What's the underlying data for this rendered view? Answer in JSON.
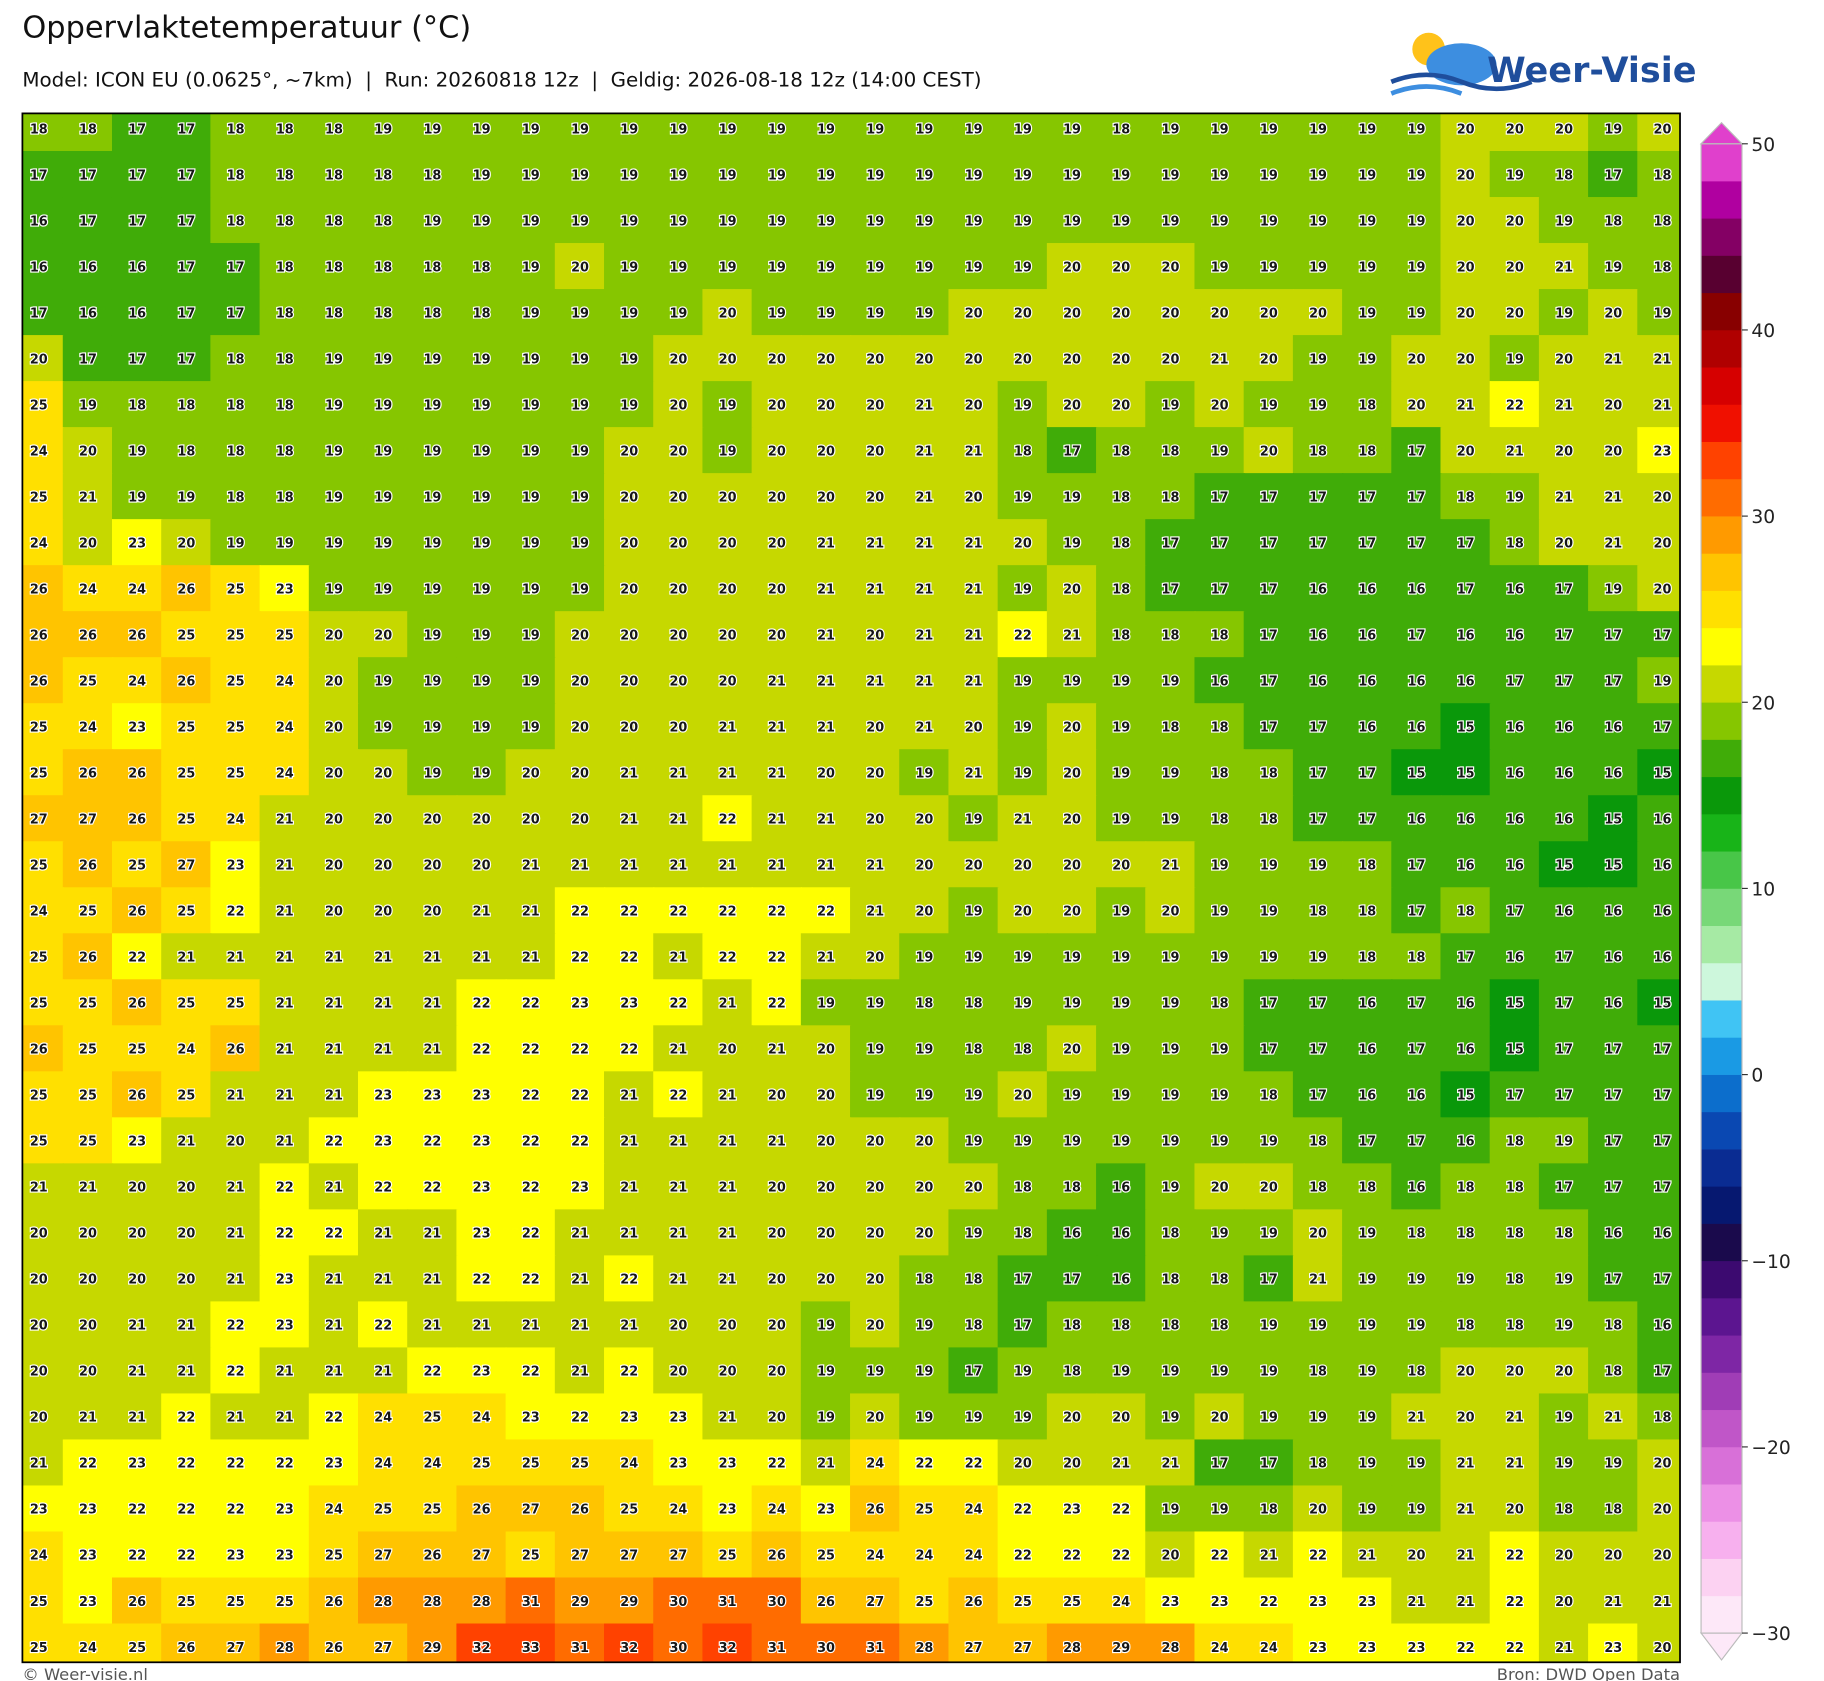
{
  "header": {
    "title": "Oppervlaktetemperatuur (°C)",
    "subtitle": "Model: ICON EU (0.0625°, ~7km)  |  Run: 20260818 12z  |  Geldig: 2026-08-18 12z (14:00 CEST)",
    "logo": "Weer-Visie"
  },
  "grid": {
    "rows": [
      [
        18,
        18,
        17,
        17,
        18,
        18,
        18,
        19,
        19,
        19,
        19,
        19,
        19,
        19,
        19,
        19,
        19,
        19,
        19,
        19,
        19,
        19,
        18,
        19,
        19,
        19,
        19,
        19,
        19,
        20,
        20,
        20,
        19,
        20
      ],
      [
        17,
        17,
        17,
        17,
        18,
        18,
        18,
        18,
        18,
        19,
        19,
        19,
        19,
        19,
        19,
        19,
        19,
        19,
        19,
        19,
        19,
        19,
        19,
        19,
        19,
        19,
        19,
        19,
        19,
        20,
        19,
        18,
        17,
        18
      ],
      [
        16,
        17,
        17,
        17,
        18,
        18,
        18,
        18,
        19,
        19,
        19,
        19,
        19,
        19,
        19,
        19,
        19,
        19,
        19,
        19,
        19,
        19,
        19,
        19,
        19,
        19,
        19,
        19,
        19,
        20,
        20,
        19,
        18,
        18
      ],
      [
        16,
        16,
        16,
        17,
        17,
        18,
        18,
        18,
        18,
        18,
        19,
        20,
        19,
        19,
        19,
        19,
        19,
        19,
        19,
        19,
        19,
        20,
        20,
        20,
        19,
        19,
        19,
        19,
        19,
        20,
        20,
        21,
        19,
        18
      ],
      [
        17,
        16,
        16,
        17,
        17,
        18,
        18,
        18,
        18,
        18,
        19,
        19,
        19,
        19,
        20,
        19,
        19,
        19,
        19,
        20,
        20,
        20,
        20,
        20,
        20,
        20,
        20,
        19,
        19,
        20,
        20,
        19,
        20,
        19
      ],
      [
        20,
        17,
        17,
        17,
        18,
        18,
        19,
        19,
        19,
        19,
        19,
        19,
        19,
        20,
        20,
        20,
        20,
        20,
        20,
        20,
        20,
        20,
        20,
        20,
        21,
        20,
        19,
        19,
        20,
        20,
        19,
        20,
        21,
        21
      ],
      [
        25,
        19,
        18,
        18,
        18,
        18,
        19,
        19,
        19,
        19,
        19,
        19,
        19,
        20,
        19,
        20,
        20,
        20,
        21,
        20,
        19,
        20,
        20,
        19,
        20,
        19,
        19,
        18,
        20,
        21,
        22,
        21,
        20,
        21
      ],
      [
        24,
        20,
        19,
        18,
        18,
        18,
        19,
        19,
        19,
        19,
        19,
        19,
        20,
        20,
        19,
        20,
        20,
        20,
        21,
        21,
        18,
        17,
        18,
        18,
        19,
        20,
        18,
        18,
        17,
        20,
        21,
        20,
        20,
        23
      ],
      [
        25,
        21,
        19,
        19,
        18,
        18,
        19,
        19,
        19,
        19,
        19,
        19,
        20,
        20,
        20,
        20,
        20,
        20,
        21,
        20,
        19,
        19,
        18,
        18,
        17,
        17,
        17,
        17,
        17,
        18,
        19,
        21,
        21,
        20
      ],
      [
        24,
        20,
        23,
        20,
        19,
        19,
        19,
        19,
        19,
        19,
        19,
        19,
        20,
        20,
        20,
        20,
        21,
        21,
        21,
        21,
        20,
        19,
        18,
        17,
        17,
        17,
        17,
        17,
        17,
        17,
        18,
        20,
        21,
        20
      ],
      [
        26,
        24,
        24,
        26,
        25,
        23,
        19,
        19,
        19,
        19,
        19,
        19,
        20,
        20,
        20,
        20,
        21,
        21,
        21,
        21,
        19,
        20,
        18,
        17,
        17,
        17,
        16,
        16,
        16,
        17,
        16,
        17,
        19,
        20
      ],
      [
        26,
        26,
        26,
        25,
        25,
        25,
        20,
        20,
        19,
        19,
        19,
        20,
        20,
        20,
        20,
        20,
        21,
        20,
        21,
        21,
        22,
        21,
        18,
        18,
        18,
        17,
        16,
        16,
        17,
        16,
        16,
        17,
        17,
        17
      ],
      [
        26,
        25,
        24,
        26,
        25,
        24,
        20,
        19,
        19,
        19,
        19,
        20,
        20,
        20,
        20,
        21,
        21,
        21,
        21,
        21,
        19,
        19,
        19,
        19,
        16,
        17,
        16,
        16,
        16,
        16,
        17,
        17,
        17,
        19
      ],
      [
        25,
        24,
        23,
        25,
        25,
        24,
        20,
        19,
        19,
        19,
        19,
        20,
        20,
        20,
        21,
        21,
        21,
        20,
        21,
        20,
        19,
        20,
        19,
        18,
        18,
        17,
        17,
        16,
        16,
        15,
        16,
        16,
        16,
        17
      ],
      [
        25,
        26,
        26,
        25,
        25,
        24,
        20,
        20,
        19,
        19,
        20,
        20,
        21,
        21,
        21,
        21,
        20,
        20,
        19,
        21,
        19,
        20,
        19,
        19,
        18,
        18,
        17,
        17,
        15,
        15,
        16,
        16,
        16,
        15
      ],
      [
        27,
        27,
        26,
        25,
        24,
        21,
        20,
        20,
        20,
        20,
        20,
        20,
        21,
        21,
        22,
        21,
        21,
        20,
        20,
        19,
        21,
        20,
        19,
        19,
        18,
        18,
        17,
        17,
        16,
        16,
        16,
        16,
        15,
        16
      ],
      [
        25,
        26,
        25,
        27,
        23,
        21,
        20,
        20,
        20,
        20,
        21,
        21,
        21,
        21,
        21,
        21,
        21,
        21,
        20,
        20,
        20,
        20,
        20,
        21,
        19,
        19,
        19,
        18,
        17,
        16,
        16,
        15,
        15,
        16
      ],
      [
        24,
        25,
        26,
        25,
        22,
        21,
        20,
        20,
        20,
        21,
        21,
        22,
        22,
        22,
        22,
        22,
        22,
        21,
        20,
        19,
        20,
        20,
        19,
        20,
        19,
        19,
        18,
        18,
        17,
        18,
        17,
        16,
        16,
        16
      ],
      [
        25,
        26,
        22,
        21,
        21,
        21,
        21,
        21,
        21,
        21,
        21,
        22,
        22,
        21,
        22,
        22,
        21,
        20,
        19,
        19,
        19,
        19,
        19,
        19,
        19,
        19,
        19,
        18,
        18,
        17,
        16,
        17,
        16,
        16
      ],
      [
        25,
        25,
        26,
        25,
        25,
        21,
        21,
        21,
        21,
        22,
        22,
        23,
        23,
        22,
        21,
        22,
        19,
        19,
        18,
        18,
        19,
        19,
        19,
        19,
        18,
        17,
        17,
        16,
        17,
        16,
        15,
        17,
        16,
        15
      ],
      [
        26,
        25,
        25,
        24,
        26,
        21,
        21,
        21,
        21,
        22,
        22,
        22,
        22,
        21,
        20,
        21,
        20,
        19,
        19,
        18,
        18,
        20,
        19,
        19,
        19,
        17,
        17,
        16,
        17,
        16,
        15,
        17,
        17,
        17
      ],
      [
        25,
        25,
        26,
        25,
        21,
        21,
        21,
        23,
        23,
        23,
        22,
        22,
        21,
        22,
        21,
        20,
        20,
        19,
        19,
        19,
        20,
        19,
        19,
        19,
        19,
        18,
        17,
        16,
        16,
        15,
        17,
        17,
        17,
        17
      ],
      [
        25,
        25,
        23,
        21,
        20,
        21,
        22,
        23,
        22,
        23,
        22,
        22,
        21,
        21,
        21,
        21,
        20,
        20,
        20,
        19,
        19,
        19,
        19,
        19,
        19,
        19,
        18,
        17,
        17,
        16,
        18,
        19,
        17,
        17
      ],
      [
        21,
        21,
        20,
        20,
        21,
        22,
        21,
        22,
        22,
        23,
        22,
        23,
        21,
        21,
        21,
        20,
        20,
        20,
        20,
        20,
        18,
        18,
        16,
        19,
        20,
        20,
        18,
        18,
        16,
        18,
        18,
        17,
        17,
        17
      ],
      [
        20,
        20,
        20,
        20,
        21,
        22,
        22,
        21,
        21,
        23,
        22,
        21,
        21,
        21,
        21,
        20,
        20,
        20,
        20,
        19,
        18,
        16,
        16,
        18,
        19,
        19,
        20,
        19,
        18,
        18,
        18,
        18,
        16,
        16
      ],
      [
        20,
        20,
        20,
        20,
        21,
        23,
        21,
        21,
        21,
        22,
        22,
        21,
        22,
        21,
        21,
        20,
        20,
        20,
        18,
        18,
        17,
        17,
        16,
        18,
        18,
        17,
        21,
        19,
        19,
        19,
        18,
        19,
        17,
        17
      ],
      [
        20,
        20,
        21,
        21,
        22,
        23,
        21,
        22,
        21,
        21,
        21,
        21,
        21,
        20,
        20,
        20,
        19,
        20,
        19,
        18,
        17,
        18,
        18,
        18,
        18,
        19,
        19,
        19,
        19,
        18,
        18,
        19,
        18,
        16
      ],
      [
        20,
        20,
        21,
        21,
        22,
        21,
        21,
        21,
        22,
        23,
        22,
        21,
        22,
        20,
        20,
        20,
        19,
        19,
        19,
        17,
        19,
        18,
        19,
        19,
        19,
        19,
        18,
        19,
        18,
        20,
        20,
        20,
        18,
        17
      ],
      [
        20,
        21,
        21,
        22,
        21,
        21,
        22,
        24,
        25,
        24,
        23,
        22,
        23,
        23,
        21,
        20,
        19,
        20,
        19,
        19,
        19,
        20,
        20,
        19,
        20,
        19,
        19,
        19,
        21,
        20,
        21,
        19,
        21,
        18
      ],
      [
        21,
        22,
        23,
        22,
        22,
        22,
        23,
        24,
        24,
        25,
        25,
        25,
        24,
        23,
        23,
        22,
        21,
        24,
        22,
        22,
        20,
        20,
        21,
        21,
        17,
        17,
        18,
        19,
        19,
        21,
        21,
        19,
        19,
        20
      ],
      [
        23,
        23,
        22,
        22,
        22,
        23,
        24,
        25,
        25,
        26,
        27,
        26,
        25,
        24,
        23,
        24,
        23,
        26,
        25,
        24,
        22,
        23,
        22,
        19,
        19,
        18,
        20,
        19,
        19,
        21,
        20,
        18,
        18,
        20
      ],
      [
        24,
        23,
        22,
        22,
        23,
        23,
        25,
        27,
        26,
        27,
        25,
        27,
        27,
        27,
        25,
        26,
        25,
        24,
        24,
        24,
        22,
        22,
        22,
        20,
        22,
        21,
        22,
        21,
        20,
        21,
        22,
        20,
        20,
        20
      ],
      [
        25,
        23,
        26,
        25,
        25,
        25,
        26,
        28,
        28,
        28,
        31,
        29,
        29,
        30,
        31,
        30,
        26,
        27,
        25,
        26,
        25,
        25,
        24,
        23,
        23,
        22,
        23,
        23,
        21,
        21,
        22,
        20,
        21,
        21
      ],
      [
        25,
        24,
        25,
        26,
        27,
        28,
        26,
        27,
        29,
        32,
        33,
        31,
        32,
        30,
        32,
        31,
        30,
        31,
        28,
        27,
        27,
        28,
        29,
        28,
        24,
        24,
        23,
        23,
        23,
        22,
        22,
        21,
        23,
        20
      ]
    ]
  },
  "colorbar": {
    "clim": [
      -30,
      50
    ],
    "ticks": [
      50,
      40,
      30,
      20,
      10,
      0,
      {
        "value": -10,
        "label": "−10"
      },
      {
        "value": -20,
        "label": "−20"
      },
      {
        "value": -30,
        "label": "−30"
      }
    ],
    "colors": [
      "#fde8f8",
      "#fcd2f2",
      "#f7b0ee",
      "#ec90e6",
      "#d870d8",
      "#c056c8",
      "#a03db6",
      "#7e26a5",
      "#5c1590",
      "#3c0a70",
      "#1a0a4c",
      "#061870",
      "#0a2c92",
      "#0a48b2",
      "#0c6ecc",
      "#1a9ae4",
      "#40c4f4",
      "#cdf7dc",
      "#a6eaa4",
      "#78d878",
      "#48c648",
      "#18b418",
      "#0a980a",
      "#40ac08",
      "#86c600",
      "#c6d800",
      "#ffff00",
      "#ffe000",
      "#ffc400",
      "#ff9a00",
      "#ff6c00",
      "#ff4200",
      "#f01000",
      "#d60000",
      "#b00000",
      "#880000",
      "#580030",
      "#840064",
      "#b000a0",
      "#e040cc"
    ]
  },
  "footer": {
    "left": "© Weer-visie.nl",
    "right": "Bron: DWD Open Data"
  }
}
